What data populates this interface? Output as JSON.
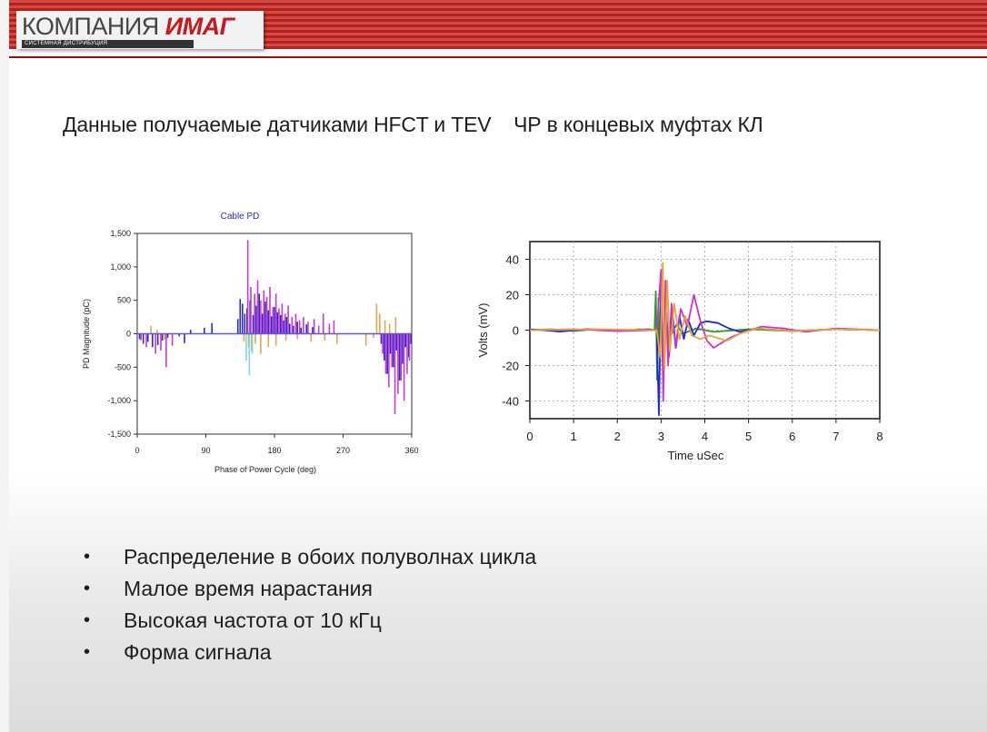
{
  "header": {
    "logo_text_a": "КОМПАНИЯ",
    "logo_text_b": "ИМАГ",
    "logo_sub": "СИСТЕМНАЯ ДИСТРИБУЦИЯ",
    "colors": {
      "band": "#b5211c",
      "logo_accent": "#c8181d"
    }
  },
  "slide_title": "Данные получаемые датчиками HFCT и TEV    ЧР в концевых муфтах КЛ",
  "bullets": [
    "Распределение в обоих полуволнах цикла",
    "Малое время нарастания",
    "Высокая частота от 10 кГц",
    "Форма сигнала"
  ],
  "chart_data": [
    {
      "type": "bar",
      "title": "Cable PD",
      "xlabel": "Phase of Power Cycle (deg)",
      "ylabel": "PD Magnitude (pC)",
      "xlim": [
        0,
        360
      ],
      "ylim": [
        -1500,
        1500
      ],
      "x_ticks": [
        0,
        90,
        180,
        270,
        360
      ],
      "x_tick_labels": [
        "0",
        "90",
        "180",
        "270",
        "360"
      ],
      "y_ticks": [
        1500,
        1000,
        500,
        0,
        -500,
        -1000,
        -1500
      ],
      "y_tick_labels": [
        "1,500",
        "1,000",
        "500",
        "0",
        "-500",
        "-1,000",
        "-1,500"
      ],
      "colors": {
        "blue": "#2b2bc8",
        "magenta": "#c53ad1",
        "orange": "#e3a54a",
        "cyan": "#7fd4e8",
        "title": "#2d2db8"
      },
      "series": [
        {
          "color": "blue",
          "points": [
            [
              3,
              -80
            ],
            [
              8,
              -150
            ],
            [
              14,
              -120
            ],
            [
              20,
              -200
            ],
            [
              27,
              -170
            ],
            [
              33,
              -100
            ],
            [
              40,
              -60
            ],
            [
              55,
              -40
            ],
            [
              62,
              -140
            ],
            [
              70,
              60
            ],
            [
              88,
              90
            ],
            [
              98,
              160
            ],
            [
              132,
              220
            ],
            [
              135,
              520
            ],
            [
              138,
              450
            ],
            [
              141,
              300
            ],
            [
              144,
              380
            ],
            [
              148,
              500
            ],
            [
              152,
              280
            ],
            [
              156,
              420
            ],
            [
              160,
              600
            ],
            [
              164,
              300
            ],
            [
              168,
              480
            ],
            [
              172,
              350
            ],
            [
              176,
              260
            ],
            [
              180,
              400
            ],
            [
              184,
              320
            ],
            [
              188,
              280
            ],
            [
              192,
              200
            ],
            [
              196,
              250
            ],
            [
              200,
              150
            ],
            [
              205,
              120
            ],
            [
              210,
              180
            ],
            [
              215,
              90
            ],
            [
              222,
              140
            ],
            [
              230,
              100
            ],
            [
              320,
              -150
            ],
            [
              324,
              -400
            ],
            [
              328,
              -600
            ],
            [
              332,
              -300
            ],
            [
              336,
              -500
            ],
            [
              340,
              -250
            ],
            [
              344,
              -700
            ],
            [
              348,
              -450
            ],
            [
              352,
              -200
            ],
            [
              356,
              -350
            ],
            [
              359,
              -150
            ]
          ]
        },
        {
          "color": "magenta",
          "points": [
            [
              5,
              -100
            ],
            [
              12,
              -200
            ],
            [
              24,
              -300
            ],
            [
              31,
              -250
            ],
            [
              38,
              -500
            ],
            [
              46,
              -180
            ],
            [
              145,
              1400
            ],
            [
              149,
              700
            ],
            [
              154,
              600
            ],
            [
              158,
              800
            ],
            [
              162,
              500
            ],
            [
              166,
              650
            ],
            [
              170,
              550
            ],
            [
              174,
              700
            ],
            [
              178,
              400
            ],
            [
              182,
              600
            ],
            [
              186,
              380
            ],
            [
              190,
              450
            ],
            [
              194,
              300
            ],
            [
              198,
              420
            ],
            [
              203,
              250
            ],
            [
              208,
              300
            ],
            [
              213,
              200
            ],
            [
              218,
              250
            ],
            [
              224,
              180
            ],
            [
              232,
              220
            ],
            [
              238,
              120
            ],
            [
              244,
              300
            ],
            [
              252,
              150
            ],
            [
              258,
              200
            ],
            [
              322,
              -300
            ],
            [
              326,
              -600
            ],
            [
              330,
              -800
            ],
            [
              334,
              -500
            ],
            [
              338,
              -1200
            ],
            [
              342,
              -900
            ],
            [
              346,
              -700
            ],
            [
              350,
              -1000
            ],
            [
              354,
              -600
            ],
            [
              357,
              -400
            ]
          ]
        },
        {
          "color": "orange",
          "points": [
            [
              18,
              120
            ],
            [
              26,
              60
            ],
            [
              36,
              -90
            ],
            [
              140,
              -120
            ],
            [
              146,
              -200
            ],
            [
              150,
              -260
            ],
            [
              155,
              -150
            ],
            [
              162,
              -300
            ],
            [
              172,
              -200
            ],
            [
              182,
              -180
            ],
            [
              195,
              -100
            ],
            [
              210,
              -80
            ],
            [
              228,
              -120
            ],
            [
              246,
              -100
            ],
            [
              262,
              -150
            ],
            [
              300,
              -180
            ],
            [
              310,
              -60
            ],
            [
              314,
              450
            ],
            [
              318,
              300
            ],
            [
              325,
              200
            ],
            [
              331,
              150
            ],
            [
              339,
              250
            ]
          ]
        },
        {
          "color": "cyan",
          "points": [
            [
              143,
              -400
            ],
            [
              147,
              -620
            ],
            [
              151,
              -300
            ]
          ]
        }
      ]
    },
    {
      "type": "line",
      "xlabel": "Time  uSec",
      "ylabel": "Volts (mV)",
      "xlim": [
        0,
        8
      ],
      "ylim": [
        -50,
        50
      ],
      "x_ticks": [
        0,
        1,
        2,
        3,
        4,
        5,
        6,
        7,
        8
      ],
      "x_tick_labels": [
        "0",
        "1",
        "2",
        "3",
        "4",
        "5",
        "6",
        "7",
        "8"
      ],
      "y_ticks": [
        40,
        20,
        0,
        -20,
        -40
      ],
      "y_tick_labels": [
        "40",
        "20",
        "0",
        "-20",
        "-40"
      ],
      "grid": true,
      "colors": {
        "blue": "#1f2bd0",
        "magenta": "#cc33cc",
        "orange": "#e8a33a",
        "green": "#2a9a2a"
      },
      "series": [
        {
          "color": "green",
          "points": [
            [
              0,
              0
            ],
            [
              0.5,
              0.5
            ],
            [
              1,
              -0.5
            ],
            [
              1.5,
              0.5
            ],
            [
              2,
              -0.5
            ],
            [
              2.5,
              0.5
            ],
            [
              2.85,
              0
            ],
            [
              2.88,
              22
            ],
            [
              2.91,
              -28
            ],
            [
              2.94,
              18
            ],
            [
              2.97,
              -15
            ],
            [
              3.0,
              10
            ],
            [
              3.05,
              -8
            ],
            [
              3.1,
              6
            ],
            [
              3.2,
              -4
            ],
            [
              3.35,
              3
            ],
            [
              3.5,
              -2
            ],
            [
              3.8,
              1
            ],
            [
              4.2,
              -1
            ],
            [
              5,
              0.5
            ],
            [
              6,
              -0.5
            ],
            [
              7,
              0.5
            ],
            [
              8,
              0
            ]
          ]
        },
        {
          "color": "blue",
          "points": [
            [
              0,
              0.5
            ],
            [
              0.7,
              -0.8
            ],
            [
              1.3,
              0.6
            ],
            [
              2,
              -0.5
            ],
            [
              2.7,
              0.5
            ],
            [
              2.9,
              0
            ],
            [
              2.95,
              -48
            ],
            [
              3.0,
              25
            ],
            [
              3.05,
              -30
            ],
            [
              3.1,
              18
            ],
            [
              3.18,
              -15
            ],
            [
              3.26,
              10
            ],
            [
              3.34,
              -10
            ],
            [
              3.42,
              8
            ],
            [
              3.52,
              -5
            ],
            [
              3.62,
              6
            ],
            [
              3.75,
              -3
            ],
            [
              3.9,
              4
            ],
            [
              4.05,
              5
            ],
            [
              4.3,
              4
            ],
            [
              4.55,
              1
            ],
            [
              4.8,
              -1
            ],
            [
              5.2,
              1
            ],
            [
              6,
              -0.5
            ],
            [
              7,
              0.5
            ],
            [
              8,
              0
            ]
          ]
        },
        {
          "color": "magenta",
          "points": [
            [
              0,
              0
            ],
            [
              1,
              0.5
            ],
            [
              2,
              -0.5
            ],
            [
              2.9,
              0
            ],
            [
              3.0,
              34
            ],
            [
              3.05,
              -40
            ],
            [
              3.1,
              28
            ],
            [
              3.16,
              -20
            ],
            [
              3.24,
              15
            ],
            [
              3.33,
              -10
            ],
            [
              3.45,
              12
            ],
            [
              3.6,
              2
            ],
            [
              3.75,
              20
            ],
            [
              3.9,
              5
            ],
            [
              4.05,
              -6
            ],
            [
              4.2,
              -10
            ],
            [
              4.4,
              -7
            ],
            [
              4.6,
              -4
            ],
            [
              4.9,
              -1
            ],
            [
              5.3,
              2
            ],
            [
              5.8,
              1
            ],
            [
              6.3,
              -1
            ],
            [
              7,
              1
            ],
            [
              8,
              0
            ]
          ]
        },
        {
          "color": "orange",
          "points": [
            [
              0,
              0
            ],
            [
              1.5,
              0.5
            ],
            [
              2.9,
              0
            ],
            [
              2.98,
              -15
            ],
            [
              3.04,
              38
            ],
            [
              3.08,
              -22
            ],
            [
              3.14,
              28
            ],
            [
              3.2,
              -12
            ],
            [
              3.3,
              15
            ],
            [
              3.42,
              -5
            ],
            [
              3.55,
              8
            ],
            [
              3.7,
              -3
            ],
            [
              3.9,
              -5
            ],
            [
              4.1,
              -3
            ],
            [
              4.5,
              -6
            ],
            [
              4.8,
              -2
            ],
            [
              5.2,
              1
            ],
            [
              6,
              -0.5
            ],
            [
              7,
              0.5
            ],
            [
              8,
              0
            ]
          ]
        }
      ]
    }
  ]
}
